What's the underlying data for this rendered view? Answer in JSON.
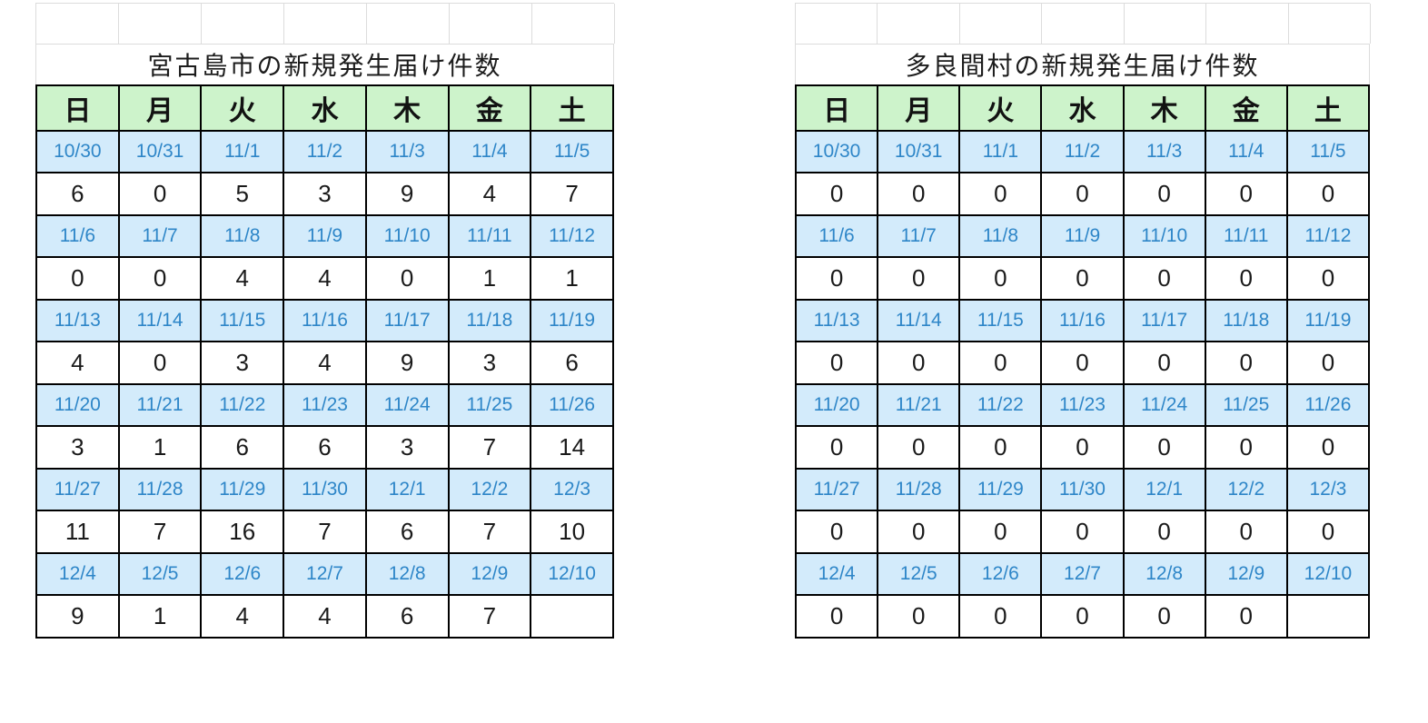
{
  "colors": {
    "header_bg": "#cdf3cb",
    "date_bg": "#d3ebfb",
    "date_text": "#2e86c8",
    "red_date_text": "#ef2b20",
    "sunday_header_text": "#f60d0d",
    "count_text": "#1a1a1a",
    "table_border": "#000000",
    "gridline": "#dcdcdc",
    "background": "#ffffff"
  },
  "weekdays": [
    {
      "t": "日",
      "red": true
    },
    {
      "t": "月",
      "red": false
    },
    {
      "t": "火",
      "red": false
    },
    {
      "t": "水",
      "red": false
    },
    {
      "t": "木",
      "red": false
    },
    {
      "t": "金",
      "red": false
    },
    {
      "t": "土",
      "red": false
    }
  ],
  "tables": [
    {
      "title": "宮古島市の新規発生届け件数",
      "weeks": [
        {
          "dates": [
            {
              "t": "10/30",
              "red": true
            },
            {
              "t": "10/31",
              "red": false
            },
            {
              "t": "11/1",
              "red": false
            },
            {
              "t": "11/2",
              "red": false
            },
            {
              "t": "11/3",
              "red": true
            },
            {
              "t": "11/4",
              "red": false
            },
            {
              "t": "11/5",
              "red": false
            }
          ],
          "counts": [
            "6",
            "0",
            "5",
            "3",
            "9",
            "4",
            "7"
          ]
        },
        {
          "dates": [
            {
              "t": "11/6",
              "red": true
            },
            {
              "t": "11/7",
              "red": false
            },
            {
              "t": "11/8",
              "red": false
            },
            {
              "t": "11/9",
              "red": false
            },
            {
              "t": "11/10",
              "red": false
            },
            {
              "t": "11/11",
              "red": false
            },
            {
              "t": "11/12",
              "red": false
            }
          ],
          "counts": [
            "0",
            "0",
            "4",
            "4",
            "0",
            "1",
            "1"
          ]
        },
        {
          "dates": [
            {
              "t": "11/13",
              "red": true
            },
            {
              "t": "11/14",
              "red": false
            },
            {
              "t": "11/15",
              "red": false
            },
            {
              "t": "11/16",
              "red": false
            },
            {
              "t": "11/17",
              "red": false
            },
            {
              "t": "11/18",
              "red": false
            },
            {
              "t": "11/19",
              "red": false
            }
          ],
          "counts": [
            "4",
            "0",
            "3",
            "4",
            "9",
            "3",
            "6"
          ]
        },
        {
          "dates": [
            {
              "t": "11/20",
              "red": true
            },
            {
              "t": "11/21",
              "red": false
            },
            {
              "t": "11/22",
              "red": false
            },
            {
              "t": "11/23",
              "red": true
            },
            {
              "t": "11/24",
              "red": false
            },
            {
              "t": "11/25",
              "red": false
            },
            {
              "t": "11/26",
              "red": false
            }
          ],
          "counts": [
            "3",
            "1",
            "6",
            "6",
            "3",
            "7",
            "14"
          ]
        },
        {
          "dates": [
            {
              "t": "11/27",
              "red": true
            },
            {
              "t": "11/28",
              "red": false
            },
            {
              "t": "11/29",
              "red": false
            },
            {
              "t": "11/30",
              "red": false
            },
            {
              "t": "12/1",
              "red": false
            },
            {
              "t": "12/2",
              "red": false
            },
            {
              "t": "12/3",
              "red": false
            }
          ],
          "counts": [
            "11",
            "7",
            "16",
            "7",
            "6",
            "7",
            "10"
          ]
        },
        {
          "dates": [
            {
              "t": "12/4",
              "red": true
            },
            {
              "t": "12/5",
              "red": false
            },
            {
              "t": "12/6",
              "red": false
            },
            {
              "t": "12/7",
              "red": false
            },
            {
              "t": "12/8",
              "red": false
            },
            {
              "t": "12/9",
              "red": false
            },
            {
              "t": "12/10",
              "red": false
            }
          ],
          "counts": [
            "9",
            "1",
            "4",
            "4",
            "6",
            "7",
            ""
          ]
        }
      ]
    },
    {
      "title": "多良間村の新規発生届け件数",
      "weeks": [
        {
          "dates": [
            {
              "t": "10/30",
              "red": true
            },
            {
              "t": "10/31",
              "red": false
            },
            {
              "t": "11/1",
              "red": false
            },
            {
              "t": "11/2",
              "red": false
            },
            {
              "t": "11/3",
              "red": true
            },
            {
              "t": "11/4",
              "red": false
            },
            {
              "t": "11/5",
              "red": false
            }
          ],
          "counts": [
            "0",
            "0",
            "0",
            "0",
            "0",
            "0",
            "0"
          ]
        },
        {
          "dates": [
            {
              "t": "11/6",
              "red": true
            },
            {
              "t": "11/7",
              "red": false
            },
            {
              "t": "11/8",
              "red": false
            },
            {
              "t": "11/9",
              "red": false
            },
            {
              "t": "11/10",
              "red": false
            },
            {
              "t": "11/11",
              "red": false
            },
            {
              "t": "11/12",
              "red": false
            }
          ],
          "counts": [
            "0",
            "0",
            "0",
            "0",
            "0",
            "0",
            "0"
          ]
        },
        {
          "dates": [
            {
              "t": "11/13",
              "red": true
            },
            {
              "t": "11/14",
              "red": false
            },
            {
              "t": "11/15",
              "red": false
            },
            {
              "t": "11/16",
              "red": false
            },
            {
              "t": "11/17",
              "red": false
            },
            {
              "t": "11/18",
              "red": false
            },
            {
              "t": "11/19",
              "red": false
            }
          ],
          "counts": [
            "0",
            "0",
            "0",
            "0",
            "0",
            "0",
            "0"
          ]
        },
        {
          "dates": [
            {
              "t": "11/20",
              "red": true
            },
            {
              "t": "11/21",
              "red": false
            },
            {
              "t": "11/22",
              "red": false
            },
            {
              "t": "11/23",
              "red": true
            },
            {
              "t": "11/24",
              "red": false
            },
            {
              "t": "11/25",
              "red": false
            },
            {
              "t": "11/26",
              "red": false
            }
          ],
          "counts": [
            "0",
            "0",
            "0",
            "0",
            "0",
            "0",
            "0"
          ]
        },
        {
          "dates": [
            {
              "t": "11/27",
              "red": true
            },
            {
              "t": "11/28",
              "red": false
            },
            {
              "t": "11/29",
              "red": false
            },
            {
              "t": "11/30",
              "red": false
            },
            {
              "t": "12/1",
              "red": false
            },
            {
              "t": "12/2",
              "red": false
            },
            {
              "t": "12/3",
              "red": false
            }
          ],
          "counts": [
            "0",
            "0",
            "0",
            "0",
            "0",
            "0",
            "0"
          ]
        },
        {
          "dates": [
            {
              "t": "12/4",
              "red": true
            },
            {
              "t": "12/5",
              "red": false
            },
            {
              "t": "12/6",
              "red": false
            },
            {
              "t": "12/7",
              "red": false
            },
            {
              "t": "12/8",
              "red": false
            },
            {
              "t": "12/9",
              "red": false
            },
            {
              "t": "12/10",
              "red": false
            }
          ],
          "counts": [
            "0",
            "0",
            "0",
            "0",
            "0",
            "0",
            ""
          ]
        }
      ]
    }
  ]
}
